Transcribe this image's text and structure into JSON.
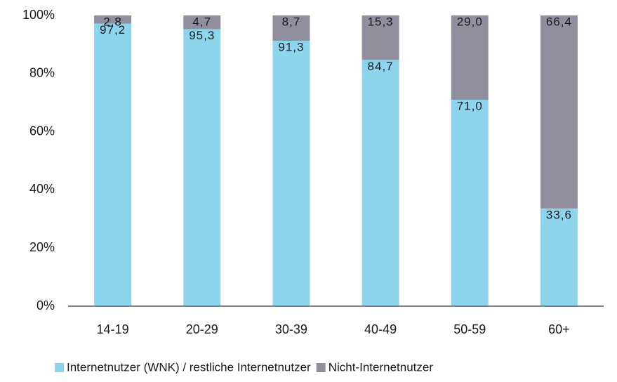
{
  "chart_data": {
    "type": "stacked_bar",
    "categories": [
      "14-19",
      "20-29",
      "30-39",
      "40-49",
      "50-59",
      "60+"
    ],
    "series": [
      {
        "name": "Internetnutzer (WNK) / restliche Internetnutzer",
        "color": "#8dd5ec",
        "values": [
          97.2,
          95.3,
          91.3,
          84.7,
          71.0,
          33.6
        ],
        "value_labels": [
          "97,2",
          "95,3",
          "91,3",
          "84,7",
          "71,0",
          "33,6"
        ]
      },
      {
        "name": "Nicht-Internetnutzer",
        "color": "#918f9e",
        "values": [
          2.8,
          4.7,
          8.7,
          15.3,
          29.0,
          66.4
        ],
        "value_labels": [
          "2,8",
          "4,7",
          "8,7",
          "15,3",
          "29,0",
          "66,4"
        ]
      }
    ],
    "ylim": [
      0,
      100
    ],
    "yticks": [
      {
        "value": 0,
        "label": "0%"
      },
      {
        "value": 20,
        "label": "20%"
      },
      {
        "value": 40,
        "label": "40%"
      },
      {
        "value": 60,
        "label": "60%"
      },
      {
        "value": 80,
        "label": "80%"
      },
      {
        "value": 100,
        "label": "100%"
      }
    ],
    "grid": false,
    "legend": "bottom"
  }
}
